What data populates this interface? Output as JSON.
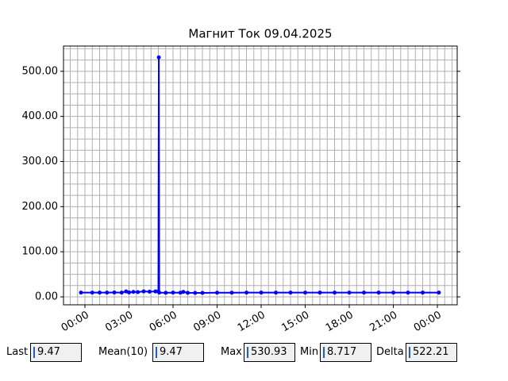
{
  "chart_data": {
    "type": "line",
    "title": "Магнит Ток 09.04.2025",
    "x": [
      -0.27,
      0.5,
      1,
      1.5,
      2,
      2.5,
      2.8,
      3.0,
      3.3,
      3.6,
      4.0,
      4.4,
      4.8,
      5.0,
      5.03,
      5.06,
      5.5,
      6,
      6.5,
      6.7,
      7,
      7.5,
      8,
      9,
      10,
      11,
      12,
      13,
      14,
      15,
      16,
      17,
      18,
      19,
      20,
      21,
      22,
      23,
      24.1
    ],
    "series": [
      {
        "name": "Магнит Ток",
        "color": "#0000ff",
        "values": [
          9.5,
          9.47,
          9.5,
          9.4,
          9.6,
          9.5,
          12,
          9.8,
          11,
          10.5,
          12,
          11.5,
          12,
          12,
          530.93,
          9.5,
          9.0,
          9.4,
          9.2,
          11,
          9.0,
          8.8,
          8.717,
          9.2,
          9.3,
          9.4,
          9.47,
          9.4,
          9.5,
          9.47,
          9.4,
          9.5,
          9.47,
          9.4,
          9.5,
          9.47,
          9.4,
          9.47,
          9.47
        ]
      }
    ],
    "xlim": [
      -1.46,
      25.35
    ],
    "xticks": [
      {
        "value": 0,
        "label": "00:00"
      },
      {
        "value": 3,
        "label": "03:00"
      },
      {
        "value": 6,
        "label": "06:00"
      },
      {
        "value": 9,
        "label": "09:00"
      },
      {
        "value": 12,
        "label": "12:00"
      },
      {
        "value": 15,
        "label": "15:00"
      },
      {
        "value": 18,
        "label": "18:00"
      },
      {
        "value": 21,
        "label": "21:00"
      },
      {
        "value": 24,
        "label": "00:00"
      }
    ],
    "ylim": [
      -17.6,
      556
    ],
    "yticks": [
      {
        "value": 0,
        "label": "0.00"
      },
      {
        "value": 100,
        "label": "100.00"
      },
      {
        "value": 200,
        "label": "200.00"
      },
      {
        "value": 300,
        "label": "300.00"
      },
      {
        "value": 400,
        "label": "400.00"
      },
      {
        "value": 500,
        "label": "500.00"
      }
    ],
    "xminorticks": [
      -1,
      -0.5,
      0,
      0.5,
      1,
      1.5,
      2,
      2.5,
      3,
      3.5,
      4,
      4.5,
      5,
      5.5,
      6,
      6.5,
      7,
      7.5,
      8,
      8.5,
      9,
      9.5,
      10,
      10.5,
      11,
      11.5,
      12,
      12.5,
      13,
      13.5,
      14,
      14.5,
      15,
      15.5,
      16,
      16.5,
      17,
      17.5,
      18,
      18.5,
      19,
      19.5,
      20,
      20.5,
      21,
      21.5,
      22,
      22.5,
      23,
      23.5,
      24,
      24.5,
      25
    ],
    "yminorticks": [
      0,
      25,
      50,
      75,
      100,
      125,
      150,
      175,
      200,
      225,
      250,
      275,
      300,
      325,
      350,
      375,
      400,
      425,
      450,
      475,
      500,
      525,
      550
    ],
    "grid": true
  },
  "stats": [
    {
      "label": "Last",
      "value": 9.47
    },
    {
      "label": "Mean(10)",
      "value": 9.47
    },
    {
      "label": "Max",
      "value": 530.93
    },
    {
      "label": "Min",
      "value": 8.717
    },
    {
      "label": "Delta",
      "value": 522.21
    }
  ]
}
